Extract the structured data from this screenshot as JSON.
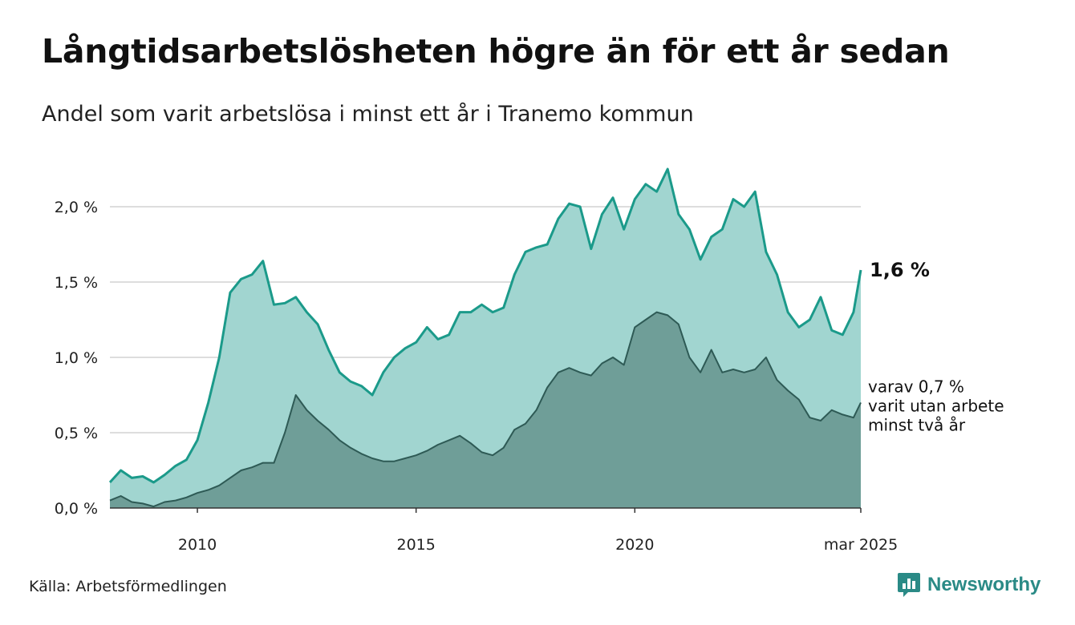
{
  "title": "Långtidsarbetslösheten högre än för ett år sedan",
  "subtitle": "Andel som varit arbetslösa i minst ett år i Tranemo kommun",
  "source": "Källa: Arbetsförmedlingen",
  "brand": {
    "name": "Newsworthy",
    "icon": "bar-chart-speech-bubble-icon",
    "color": "#2a8a86"
  },
  "colors": {
    "series1_line": "#1b9a8a",
    "series1_fill": "#a1d5d0",
    "series2_line": "#2e5a55",
    "series2_fill": "#6f9e98",
    "grid": "#dddddd",
    "axis": "#333333"
  },
  "chart_data": {
    "type": "area",
    "ylim": [
      0,
      2.2
    ],
    "yticks": [
      0.0,
      0.5,
      1.0,
      1.5,
      2.0
    ],
    "ytick_labels": [
      "0,0 %",
      "0,5 %",
      "1,0 %",
      "1,5 %",
      "2,0 %"
    ],
    "xlim": [
      "2008-01",
      "2025-03"
    ],
    "xticks": [
      "2010-01",
      "2015-01",
      "2020-01",
      "2025-03"
    ],
    "xtick_labels": [
      "2010",
      "2015",
      "2020",
      "mar 2025"
    ],
    "grid": true,
    "series": [
      {
        "key": "minst-ett-ar",
        "end_label": "1,6 %",
        "points": [
          [
            "2008-01",
            0.17
          ],
          [
            "2008-04",
            0.25
          ],
          [
            "2008-07",
            0.2
          ],
          [
            "2008-10",
            0.21
          ],
          [
            "2009-01",
            0.17
          ],
          [
            "2009-04",
            0.22
          ],
          [
            "2009-07",
            0.28
          ],
          [
            "2009-10",
            0.32
          ],
          [
            "2010-01",
            0.45
          ],
          [
            "2010-04",
            0.7
          ],
          [
            "2010-07",
            1.0
          ],
          [
            "2010-10",
            1.43
          ],
          [
            "2011-01",
            1.52
          ],
          [
            "2011-04",
            1.55
          ],
          [
            "2011-07",
            1.64
          ],
          [
            "2011-10",
            1.35
          ],
          [
            "2012-01",
            1.36
          ],
          [
            "2012-04",
            1.4
          ],
          [
            "2012-07",
            1.3
          ],
          [
            "2012-10",
            1.22
          ],
          [
            "2013-01",
            1.05
          ],
          [
            "2013-04",
            0.9
          ],
          [
            "2013-07",
            0.84
          ],
          [
            "2013-10",
            0.81
          ],
          [
            "2014-01",
            0.75
          ],
          [
            "2014-04",
            0.9
          ],
          [
            "2014-07",
            1.0
          ],
          [
            "2014-10",
            1.06
          ],
          [
            "2015-01",
            1.1
          ],
          [
            "2015-04",
            1.2
          ],
          [
            "2015-07",
            1.12
          ],
          [
            "2015-10",
            1.15
          ],
          [
            "2016-01",
            1.3
          ],
          [
            "2016-04",
            1.3
          ],
          [
            "2016-07",
            1.35
          ],
          [
            "2016-10",
            1.3
          ],
          [
            "2017-01",
            1.33
          ],
          [
            "2017-04",
            1.55
          ],
          [
            "2017-07",
            1.7
          ],
          [
            "2017-10",
            1.73
          ],
          [
            "2018-01",
            1.75
          ],
          [
            "2018-04",
            1.92
          ],
          [
            "2018-07",
            2.02
          ],
          [
            "2018-10",
            2.0
          ],
          [
            "2019-01",
            1.72
          ],
          [
            "2019-04",
            1.95
          ],
          [
            "2019-07",
            2.06
          ],
          [
            "2019-10",
            1.85
          ],
          [
            "2020-01",
            2.05
          ],
          [
            "2020-04",
            2.15
          ],
          [
            "2020-07",
            2.1
          ],
          [
            "2020-10",
            2.25
          ],
          [
            "2021-01",
            1.95
          ],
          [
            "2021-04",
            1.85
          ],
          [
            "2021-07",
            1.65
          ],
          [
            "2021-10",
            1.8
          ],
          [
            "2022-01",
            1.85
          ],
          [
            "2022-04",
            2.05
          ],
          [
            "2022-07",
            2.0
          ],
          [
            "2022-10",
            2.1
          ],
          [
            "2023-01",
            1.7
          ],
          [
            "2023-04",
            1.55
          ],
          [
            "2023-07",
            1.3
          ],
          [
            "2023-10",
            1.2
          ],
          [
            "2024-01",
            1.25
          ],
          [
            "2024-04",
            1.4
          ],
          [
            "2024-07",
            1.18
          ],
          [
            "2024-10",
            1.15
          ],
          [
            "2025-01",
            1.3
          ],
          [
            "2025-03",
            1.58
          ]
        ]
      },
      {
        "key": "minst-tva-ar",
        "end_label_lines": [
          "varav 0,7 %",
          "varit utan arbete",
          "minst två år"
        ],
        "points": [
          [
            "2008-01",
            0.05
          ],
          [
            "2008-04",
            0.08
          ],
          [
            "2008-07",
            0.04
          ],
          [
            "2008-10",
            0.03
          ],
          [
            "2009-01",
            0.01
          ],
          [
            "2009-04",
            0.04
          ],
          [
            "2009-07",
            0.05
          ],
          [
            "2009-10",
            0.07
          ],
          [
            "2010-01",
            0.1
          ],
          [
            "2010-04",
            0.12
          ],
          [
            "2010-07",
            0.15
          ],
          [
            "2010-10",
            0.2
          ],
          [
            "2011-01",
            0.25
          ],
          [
            "2011-04",
            0.27
          ],
          [
            "2011-07",
            0.3
          ],
          [
            "2011-10",
            0.3
          ],
          [
            "2012-01",
            0.5
          ],
          [
            "2012-04",
            0.75
          ],
          [
            "2012-07",
            0.65
          ],
          [
            "2012-10",
            0.58
          ],
          [
            "2013-01",
            0.52
          ],
          [
            "2013-04",
            0.45
          ],
          [
            "2013-07",
            0.4
          ],
          [
            "2013-10",
            0.36
          ],
          [
            "2014-01",
            0.33
          ],
          [
            "2014-04",
            0.31
          ],
          [
            "2014-07",
            0.31
          ],
          [
            "2014-10",
            0.33
          ],
          [
            "2015-01",
            0.35
          ],
          [
            "2015-04",
            0.38
          ],
          [
            "2015-07",
            0.42
          ],
          [
            "2015-10",
            0.45
          ],
          [
            "2016-01",
            0.48
          ],
          [
            "2016-04",
            0.43
          ],
          [
            "2016-07",
            0.37
          ],
          [
            "2016-10",
            0.35
          ],
          [
            "2017-01",
            0.4
          ],
          [
            "2017-04",
            0.52
          ],
          [
            "2017-07",
            0.56
          ],
          [
            "2017-10",
            0.65
          ],
          [
            "2018-01",
            0.8
          ],
          [
            "2018-04",
            0.9
          ],
          [
            "2018-07",
            0.93
          ],
          [
            "2018-10",
            0.9
          ],
          [
            "2019-01",
            0.88
          ],
          [
            "2019-04",
            0.96
          ],
          [
            "2019-07",
            1.0
          ],
          [
            "2019-10",
            0.95
          ],
          [
            "2020-01",
            1.2
          ],
          [
            "2020-04",
            1.25
          ],
          [
            "2020-07",
            1.3
          ],
          [
            "2020-10",
            1.28
          ],
          [
            "2021-01",
            1.22
          ],
          [
            "2021-04",
            1.0
          ],
          [
            "2021-07",
            0.9
          ],
          [
            "2021-10",
            1.05
          ],
          [
            "2022-01",
            0.9
          ],
          [
            "2022-04",
            0.92
          ],
          [
            "2022-07",
            0.9
          ],
          [
            "2022-10",
            0.92
          ],
          [
            "2023-01",
            1.0
          ],
          [
            "2023-04",
            0.85
          ],
          [
            "2023-07",
            0.78
          ],
          [
            "2023-10",
            0.72
          ],
          [
            "2024-01",
            0.6
          ],
          [
            "2024-04",
            0.58
          ],
          [
            "2024-07",
            0.65
          ],
          [
            "2024-10",
            0.62
          ],
          [
            "2025-01",
            0.6
          ],
          [
            "2025-03",
            0.7
          ]
        ]
      }
    ]
  }
}
